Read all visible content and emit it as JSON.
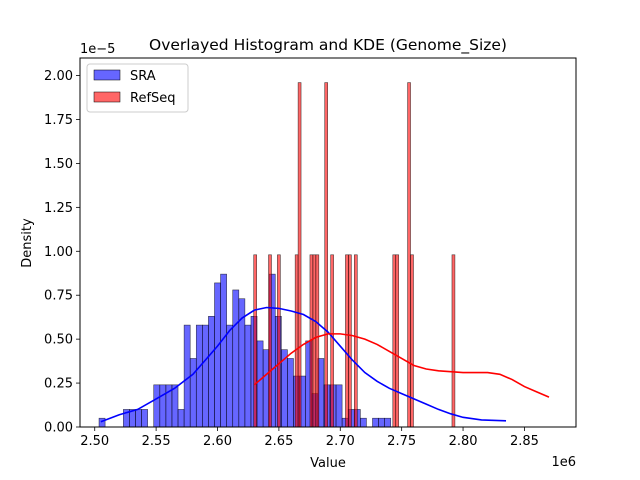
{
  "chart_data": {
    "type": "histogram",
    "title": "Overlayed Histogram and KDE (Genome_Size)",
    "xlabel": "Value",
    "ylabel": "Density",
    "x_offset_label": "1e6",
    "y_offset_label": "1e−5",
    "xlim": [
      2.488,
      2.892
    ],
    "ylim": [
      0,
      2.1
    ],
    "xticks": [
      2.5,
      2.55,
      2.6,
      2.65,
      2.7,
      2.75,
      2.8,
      2.85
    ],
    "xtick_labels": [
      "2.50",
      "2.55",
      "2.60",
      "2.65",
      "2.70",
      "2.75",
      "2.80",
      "2.85"
    ],
    "yticks": [
      0,
      0.25,
      0.5,
      0.75,
      1.0,
      1.25,
      1.5,
      1.75,
      2.0
    ],
    "ytick_labels": [
      "0.00",
      "0.25",
      "0.50",
      "0.75",
      "1.00",
      "1.25",
      "1.50",
      "1.75",
      "2.00"
    ],
    "legend_position": "top-left",
    "series": [
      {
        "name": "SRA",
        "color": "#0000ff",
        "bin_start": 2.5035,
        "bin_width": 0.00495,
        "values": [
          0.05,
          0,
          0,
          0,
          0.1,
          0.1,
          0.1,
          0.1,
          0,
          0.24,
          0.24,
          0.24,
          0.24,
          0.1,
          0.58,
          0.39,
          0.58,
          0.58,
          0.63,
          0.82,
          0.87,
          0.58,
          0.78,
          0.73,
          0.58,
          0.63,
          0.49,
          0.44,
          0.87,
          0.63,
          0.44,
          0.39,
          0.29,
          0.29,
          0.49,
          0.19,
          0.39,
          0.24,
          0.24,
          0.24,
          0.05,
          0.1,
          0.1,
          0.05,
          0,
          0.05,
          0.05,
          0.05
        ]
      },
      {
        "name": "RefSeq",
        "color": "#ff0000",
        "bin_start": 2.6295,
        "bin_width": 0.00241,
        "values": [
          0.98,
          0,
          0,
          0,
          0,
          0.98,
          0,
          0,
          0.98,
          0,
          0,
          0,
          0,
          0,
          0.98,
          1.96,
          0,
          0,
          0,
          0.98,
          0.98,
          0.98,
          0,
          0,
          1.96,
          0,
          0.98,
          0,
          0,
          0,
          0,
          0.98,
          0.98,
          0,
          0.98,
          0,
          0,
          0,
          0,
          0,
          0,
          0,
          0,
          0,
          0,
          0,
          0,
          0.98,
          0.98,
          0,
          0,
          0,
          1.96,
          0.98,
          0,
          0,
          0,
          0,
          0,
          0,
          0,
          0,
          0,
          0,
          0,
          0,
          0,
          0.98
        ]
      }
    ],
    "kde": [
      {
        "name": "SRA",
        "color": "#0000ff",
        "points": [
          [
            2.505,
            0.03
          ],
          [
            2.52,
            0.07
          ],
          [
            2.535,
            0.1
          ],
          [
            2.55,
            0.16
          ],
          [
            2.565,
            0.22
          ],
          [
            2.58,
            0.3
          ],
          [
            2.59,
            0.38
          ],
          [
            2.6,
            0.46
          ],
          [
            2.61,
            0.55
          ],
          [
            2.62,
            0.62
          ],
          [
            2.63,
            0.665
          ],
          [
            2.64,
            0.68
          ],
          [
            2.65,
            0.675
          ],
          [
            2.66,
            0.66
          ],
          [
            2.67,
            0.64
          ],
          [
            2.68,
            0.6
          ],
          [
            2.69,
            0.54
          ],
          [
            2.7,
            0.46
          ],
          [
            2.71,
            0.38
          ],
          [
            2.72,
            0.31
          ],
          [
            2.73,
            0.26
          ],
          [
            2.74,
            0.22
          ],
          [
            2.75,
            0.19
          ],
          [
            2.76,
            0.16
          ],
          [
            2.77,
            0.13
          ],
          [
            2.78,
            0.1
          ],
          [
            2.79,
            0.075
          ],
          [
            2.8,
            0.055
          ],
          [
            2.815,
            0.04
          ],
          [
            2.835,
            0.035
          ]
        ]
      },
      {
        "name": "RefSeq",
        "color": "#ff0000",
        "points": [
          [
            2.63,
            0.24
          ],
          [
            2.64,
            0.3
          ],
          [
            2.65,
            0.36
          ],
          [
            2.66,
            0.42
          ],
          [
            2.67,
            0.47
          ],
          [
            2.68,
            0.51
          ],
          [
            2.69,
            0.53
          ],
          [
            2.7,
            0.53
          ],
          [
            2.71,
            0.52
          ],
          [
            2.72,
            0.5
          ],
          [
            2.73,
            0.47
          ],
          [
            2.74,
            0.43
          ],
          [
            2.75,
            0.39
          ],
          [
            2.76,
            0.35
          ],
          [
            2.77,
            0.33
          ],
          [
            2.78,
            0.32
          ],
          [
            2.79,
            0.315
          ],
          [
            2.8,
            0.31
          ],
          [
            2.81,
            0.31
          ],
          [
            2.82,
            0.31
          ],
          [
            2.83,
            0.3
          ],
          [
            2.84,
            0.27
          ],
          [
            2.85,
            0.23
          ],
          [
            2.86,
            0.2
          ],
          [
            2.87,
            0.17
          ]
        ]
      }
    ]
  }
}
